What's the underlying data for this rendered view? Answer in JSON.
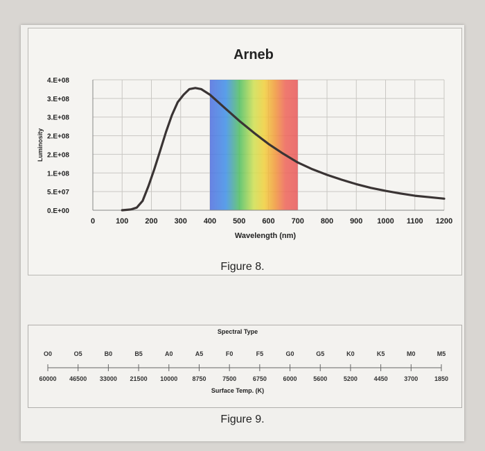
{
  "figure8_caption": "Figure 8.",
  "figure9_caption": "Figure 9.",
  "chart_data": {
    "type": "line",
    "title": "Arneb",
    "xlabel": "Wavelength (nm)",
    "ylabel": "Luminosity",
    "x_ticks": [
      "0",
      "100",
      "200",
      "300",
      "400",
      "500",
      "600",
      "700",
      "800",
      "900",
      "1000",
      "1100",
      "1200"
    ],
    "y_ticks": [
      "0.E+00",
      "5.E+07",
      "1.E+08",
      "2.E+08",
      "2.E+08",
      "3.E+08",
      "3.E+08",
      "4.E+08"
    ],
    "xlim": [
      0,
      1200
    ],
    "ylim": [
      0,
      350000000
    ],
    "grid": true,
    "visible_band_nm": [
      400,
      700
    ],
    "series": [
      {
        "x": [
          100,
          130,
          150,
          170,
          190,
          210,
          230,
          250,
          270,
          290,
          310,
          330,
          350,
          370,
          400,
          450,
          500,
          550,
          600,
          650,
          700,
          750,
          800,
          850,
          900,
          950,
          1000,
          1050,
          1100,
          1150,
          1200
        ],
        "y": [
          0,
          2000000,
          7000000,
          25000000,
          65000000,
          110000000,
          160000000,
          210000000,
          255000000,
          290000000,
          310000000,
          325000000,
          328000000,
          325000000,
          310000000,
          275000000,
          240000000,
          208000000,
          178000000,
          152000000,
          128000000,
          110000000,
          95000000,
          82000000,
          70000000,
          60000000,
          52000000,
          45000000,
          39000000,
          35000000,
          31000000
        ]
      }
    ]
  },
  "spectral": {
    "title": "Spectral Type",
    "types": [
      "O0",
      "O5",
      "B0",
      "B5",
      "A0",
      "A5",
      "F0",
      "F5",
      "G0",
      "G5",
      "K0",
      "K5",
      "M0",
      "M5"
    ],
    "temps": [
      "60000",
      "46500",
      "33000",
      "21500",
      "10000",
      "8750",
      "7500",
      "6750",
      "6000",
      "5600",
      "5200",
      "4450",
      "3700",
      "1850"
    ],
    "xlabel": "Surface Temp. (K)"
  }
}
